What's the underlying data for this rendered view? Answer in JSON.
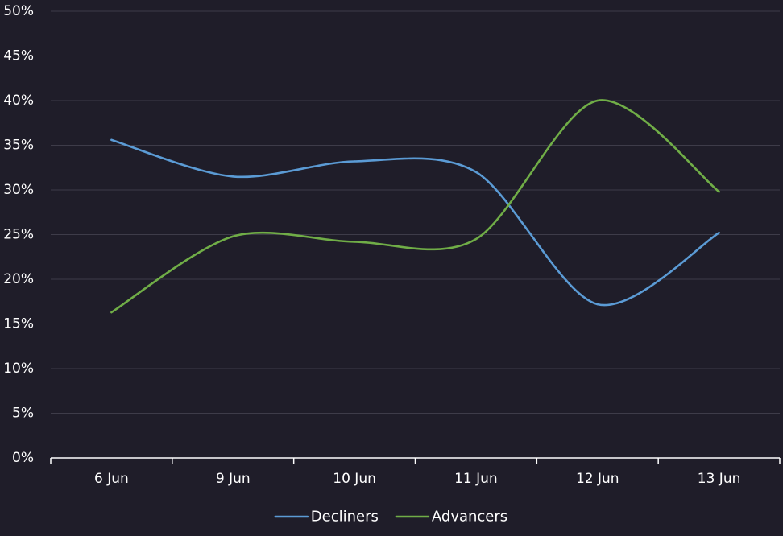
{
  "chart_data": {
    "type": "line",
    "categories": [
      "6 Jun",
      "9 Jun",
      "10 Jun",
      "11 Jun",
      "12 Jun",
      "13 Jun"
    ],
    "series": [
      {
        "name": "Decliners",
        "color": "#5b9bd5",
        "values": [
          35.6,
          31.5,
          33.2,
          32.0,
          17.2,
          25.2
        ]
      },
      {
        "name": "Advancers",
        "color": "#70ad47",
        "values": [
          16.3,
          24.8,
          24.2,
          24.5,
          40.0,
          29.8
        ]
      }
    ],
    "y_ticks": [
      "0%",
      "5%",
      "10%",
      "15%",
      "20%",
      "25%",
      "30%",
      "35%",
      "40%",
      "45%",
      "50%"
    ],
    "ylim": [
      0,
      50
    ],
    "y_unit": "%",
    "grid": true,
    "legend_position": "bottom-center",
    "colors": {
      "background": "#1f1d29",
      "gridline": "#3e3c49",
      "axis": "#ffffff",
      "text": "#ffffff"
    }
  }
}
